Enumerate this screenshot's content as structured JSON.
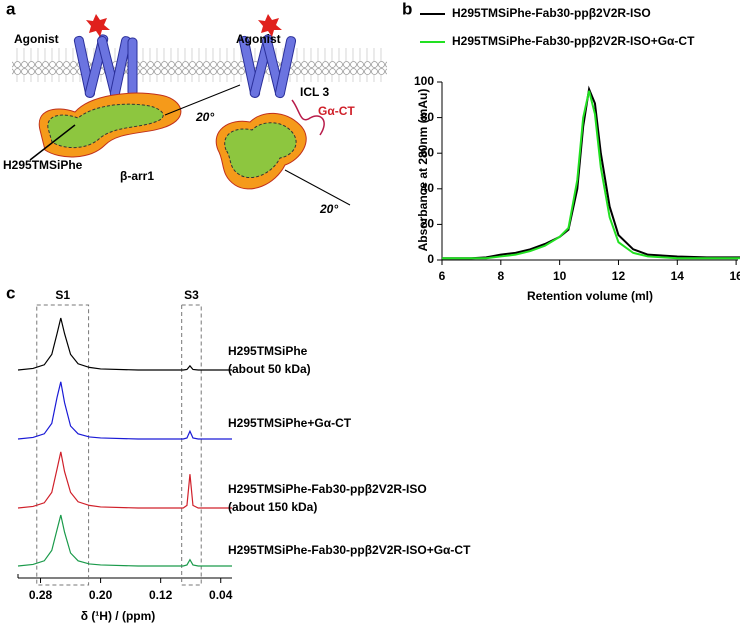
{
  "panel_a": {
    "letter": "a",
    "agonist_left": "Agonist",
    "agonist_right": "Agonist",
    "icl": "ICL 3",
    "gact": "Gα-CT",
    "probe": "H295TMSiPhe",
    "arrestin": "β-arr1",
    "angle_top": "20°",
    "angle_bottom": "20°"
  },
  "chart_data": [
    {
      "type": "line",
      "letter": "b",
      "xlabel": "Retention volume (ml)",
      "ylabel": "Absorbance at 280nm (mAu)",
      "xlim": [
        6,
        16.2
      ],
      "xticks": [
        6,
        8,
        10,
        12,
        14,
        16
      ],
      "ylim": [
        0,
        100
      ],
      "yticks": [
        0,
        20,
        40,
        60,
        80,
        100
      ],
      "x": [
        6,
        7,
        7.5,
        8,
        8.5,
        9,
        9.5,
        10,
        10.3,
        10.6,
        10.8,
        11,
        11.2,
        11.4,
        11.7,
        12,
        12.5,
        13,
        14,
        15,
        16.2
      ],
      "series": [
        {
          "name": "H295TMSiPhe-Fab30-ppβ2V2R-ISO",
          "color": "#000000",
          "values": [
            1,
            1,
            1.5,
            3,
            4,
            6,
            9,
            13,
            17,
            40,
            75,
            96,
            88,
            60,
            30,
            14,
            6,
            3,
            2,
            1.5,
            1.5
          ]
        },
        {
          "name": "H295TMSiPhe-Fab30-ppβ2V2R-ISO+Gα-CT",
          "color": "#22e022",
          "values": [
            1,
            1,
            1,
            2,
            3,
            5,
            8,
            13,
            18,
            45,
            80,
            95,
            82,
            52,
            24,
            10,
            4,
            2,
            1,
            1,
            1
          ]
        }
      ]
    },
    {
      "type": "spectra",
      "letter": "c",
      "xlabel": "δ (¹H) / (ppm)",
      "xlim": [
        0.31,
        0.025
      ],
      "xticks": [
        {
          "value": 0.28,
          "label": "0.28"
        },
        {
          "value": 0.2,
          "label": "0.20"
        },
        {
          "value": 0.12,
          "label": "0.12"
        },
        {
          "value": 0.04,
          "label": "0.04"
        }
      ],
      "regions": [
        {
          "label": "S1",
          "range": [
            0.285,
            0.216
          ]
        },
        {
          "label": "S3",
          "range": [
            0.092,
            0.066
          ]
        }
      ],
      "x": [
        0.31,
        0.29,
        0.275,
        0.265,
        0.258,
        0.253,
        0.248,
        0.24,
        0.23,
        0.215,
        0.2,
        0.15,
        0.1,
        0.09,
        0.085,
        0.081,
        0.077,
        0.07,
        0.05,
        0.025
      ],
      "series": [
        {
          "labels": [
            "H295TMSiPhe",
            "(about 50 kDa)"
          ],
          "color": "#000000",
          "values": [
            0,
            0.3,
            1,
            3,
            7,
            10,
            7,
            3,
            1.2,
            0.5,
            0.2,
            0,
            0,
            0,
            0.1,
            0.8,
            0.1,
            0,
            0,
            0
          ]
        },
        {
          "labels": [
            "H295TMSiPhe+Gα-CT"
          ],
          "color": "#1a1ad6",
          "values": [
            0,
            0.3,
            1,
            3,
            8,
            11,
            7,
            2.5,
            1,
            0.4,
            0.2,
            0,
            0,
            0,
            0.2,
            1.5,
            0.2,
            0,
            0,
            0
          ]
        },
        {
          "labels": [
            "H295TMSiPhe-Fab30-ppβ2V2R-ISO",
            "(about 150 kDa)"
          ],
          "color": "#d0202a",
          "values": [
            0,
            0.3,
            1,
            3,
            7.5,
            10.8,
            7,
            3,
            1.2,
            0.5,
            0.2,
            0,
            0,
            0,
            0.5,
            6.5,
            0.5,
            0,
            0,
            0
          ]
        },
        {
          "labels": [
            "H295TMSiPhe-Fab30-ppβ2V2R-ISO+Gα-CT"
          ],
          "color": "#1a9a4a",
          "values": [
            0,
            0.3,
            1,
            3,
            7,
            9.8,
            6.5,
            2.5,
            1,
            0.4,
            0.2,
            0,
            0,
            0,
            0.2,
            1.2,
            0.2,
            0,
            0,
            0
          ]
        }
      ]
    }
  ]
}
